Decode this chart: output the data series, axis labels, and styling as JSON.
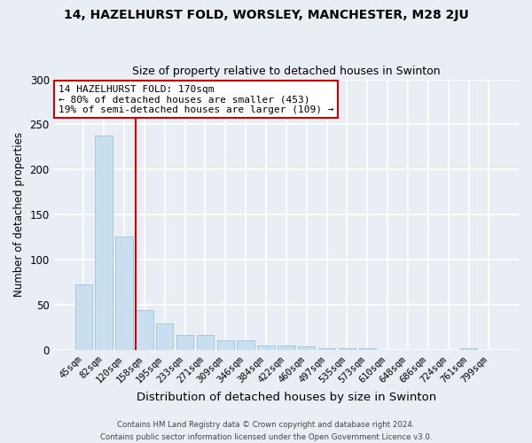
{
  "title": "14, HAZELHURST FOLD, WORSLEY, MANCHESTER, M28 2JU",
  "subtitle": "Size of property relative to detached houses in Swinton",
  "xlabel": "Distribution of detached houses by size in Swinton",
  "ylabel": "Number of detached properties",
  "bar_color": "#c8dff0",
  "bar_edge_color": "#a0c0d8",
  "background_color": "#e8eef4",
  "plot_bg_color": "#e8eef4",
  "grid_color": "#ffffff",
  "categories": [
    "45sqm",
    "82sqm",
    "120sqm",
    "158sqm",
    "195sqm",
    "233sqm",
    "271sqm",
    "309sqm",
    "346sqm",
    "384sqm",
    "422sqm",
    "460sqm",
    "497sqm",
    "535sqm",
    "573sqm",
    "610sqm",
    "648sqm",
    "686sqm",
    "724sqm",
    "761sqm",
    "799sqm"
  ],
  "values": [
    73,
    238,
    126,
    44,
    30,
    17,
    17,
    11,
    11,
    5,
    5,
    4,
    2,
    2,
    2,
    0,
    0,
    0,
    0,
    2,
    0
  ],
  "ylim": [
    0,
    300
  ],
  "yticks": [
    0,
    50,
    100,
    150,
    200,
    250,
    300
  ],
  "red_line_index": 3,
  "red_line_color": "#cc0000",
  "annotation_line1": "14 HAZELHURST FOLD: 170sqm",
  "annotation_line2": "← 80% of detached houses are smaller (453)",
  "annotation_line3": "19% of semi-detached houses are larger (109) →",
  "annotation_box_color": "#ffffff",
  "annotation_box_edge_color": "#cc0000",
  "footer_line1": "Contains HM Land Registry data © Crown copyright and database right 2024.",
  "footer_line2": "Contains public sector information licensed under the Open Government Licence v3.0."
}
